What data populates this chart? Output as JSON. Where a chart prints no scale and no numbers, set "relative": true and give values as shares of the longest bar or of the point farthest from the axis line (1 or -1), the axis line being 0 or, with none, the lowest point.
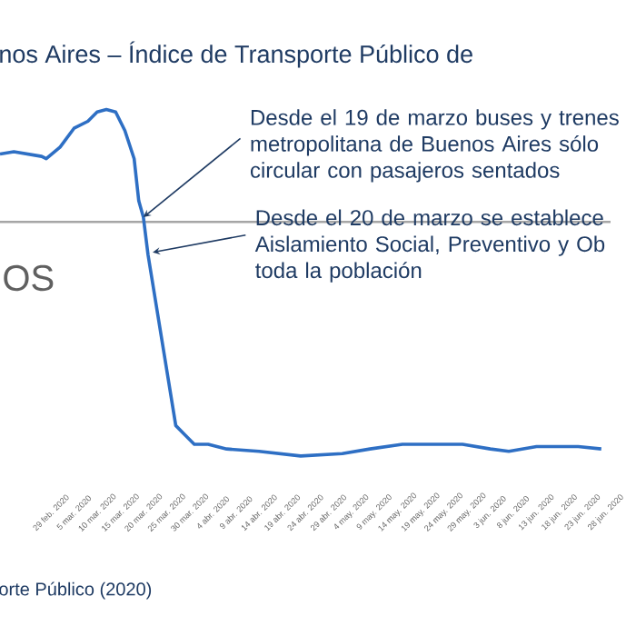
{
  "chart_data": {
    "type": "line",
    "title": "nos Aires – Índice de Transporte Público de",
    "relative": true,
    "x": [
      "2020-02-18",
      "2020-02-21",
      "2020-02-27",
      "2020-02-28",
      "2020-03-02",
      "2020-03-05",
      "2020-03-08",
      "2020-03-10",
      "2020-03-12",
      "2020-03-14",
      "2020-03-16",
      "2020-03-18",
      "2020-03-19",
      "2020-03-20",
      "2020-03-21",
      "2020-03-27",
      "2020-03-29",
      "2020-03-31",
      "2020-04-03",
      "2020-04-07",
      "2020-04-14",
      "2020-04-23",
      "2020-05-02",
      "2020-05-08",
      "2020-05-15",
      "2020-05-28",
      "2020-06-03",
      "2020-06-07",
      "2020-06-13",
      "2020-06-22",
      "2020-06-27"
    ],
    "series": [
      {
        "color": "#2e6fc4",
        "values": [
          0.29,
          0.3,
          0.28,
          0.27,
          0.32,
          0.4,
          0.43,
          0.47,
          0.48,
          0.47,
          0.39,
          0.27,
          0.09,
          0.02,
          -0.14,
          -0.87,
          -0.91,
          -0.95,
          -0.95,
          -0.97,
          -0.98,
          -1,
          -0.99,
          -0.97,
          -0.95,
          -0.95,
          -0.97,
          -0.98,
          -0.96,
          -0.96,
          -0.97
        ]
      }
    ],
    "xlim": [
      "2020-02-18",
      "2020-06-29"
    ],
    "xticks": [
      {
        "value": "2020-02-29",
        "label": "29 feb. 2020"
      },
      {
        "value": "2020-03-05",
        "label": "5 mar. 2020"
      },
      {
        "value": "2020-03-10",
        "label": "10 mar. 2020"
      },
      {
        "value": "2020-03-15",
        "label": "15 mar. 2020"
      },
      {
        "value": "2020-03-20",
        "label": "20 mar. 2020"
      },
      {
        "value": "2020-03-25",
        "label": "25 mar. 2020"
      },
      {
        "value": "2020-03-30",
        "label": "30 mar. 2020"
      },
      {
        "value": "2020-04-04",
        "label": "4 abr. 2020"
      },
      {
        "value": "2020-04-09",
        "label": "9 abr. 2020"
      },
      {
        "value": "2020-04-14",
        "label": "14 abr. 2020"
      },
      {
        "value": "2020-04-19",
        "label": "19 abr. 2020"
      },
      {
        "value": "2020-04-24",
        "label": "24 abr. 2020"
      },
      {
        "value": "2020-04-29",
        "label": "29 abr. 2020"
      },
      {
        "value": "2020-05-04",
        "label": "4 may. 2020"
      },
      {
        "value": "2020-05-09",
        "label": "9 may. 2020"
      },
      {
        "value": "2020-05-14",
        "label": "14 may. 2020"
      },
      {
        "value": "2020-05-19",
        "label": "19 may. 2020"
      },
      {
        "value": "2020-05-24",
        "label": "24 may. 2020"
      },
      {
        "value": "2020-05-29",
        "label": "29 may. 2020"
      },
      {
        "value": "2020-06-03",
        "label": "3 jun. 2020"
      },
      {
        "value": "2020-06-08",
        "label": "8 jun. 2020"
      },
      {
        "value": "2020-06-13",
        "label": "13 jun. 2020"
      },
      {
        "value": "2020-06-18",
        "label": "18 jun. 2020"
      },
      {
        "value": "2020-06-23",
        "label": "23 jun. 2020"
      },
      {
        "value": "2020-06-28",
        "label": "28 jun. 2020"
      }
    ],
    "annotations": [
      {
        "text": "Desde el 19 de marzo buses y trenes metropolitana de Buenos Aires sólo circular con pasajeros sentados",
        "x": "2020-03-20",
        "y": 0.02
      },
      {
        "text": "Desde el 20 de marzo se establece Aislamiento Social, Preventivo y Ob toda la población",
        "x": "2020-03-22",
        "y": -0.13
      },
      "OS",
      "orte Público (2020)"
    ]
  }
}
